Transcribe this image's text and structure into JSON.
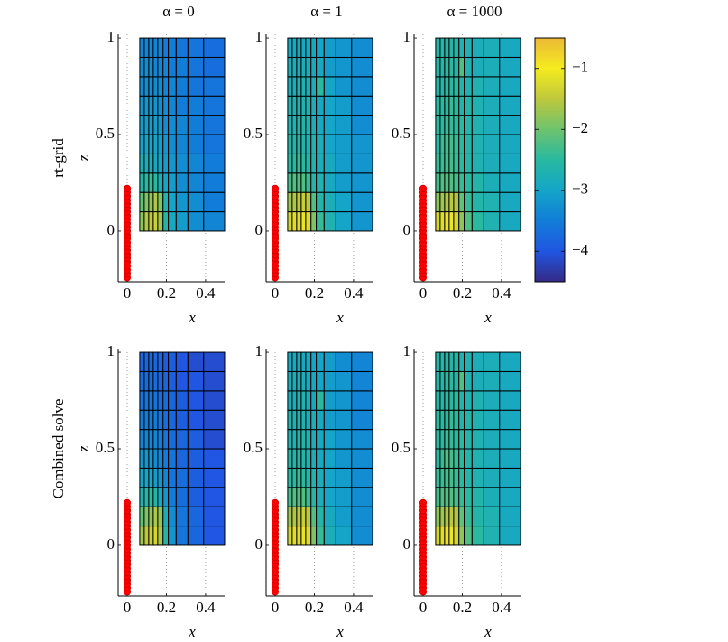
{
  "chart_data": [
    {
      "type": "heatmap",
      "title": "α = 0",
      "row_label": "rt-grid",
      "ylabel": "z",
      "xlabel": "x",
      "xlim": [
        -0.046,
        0.497
      ],
      "ylim": [
        -0.262,
        1.019
      ],
      "xticks": [
        0,
        0.2,
        0.4
      ],
      "yticks": [
        0,
        0.5,
        1
      ],
      "grid": true,
      "x_edges": [
        0.064,
        0.087,
        0.11,
        0.133,
        0.156,
        0.183,
        0.21,
        0.25,
        0.31,
        0.39,
        0.497
      ],
      "y_edges": [
        0,
        0.1,
        0.2,
        0.3,
        0.4,
        0.5,
        0.6,
        0.7,
        0.8,
        0.9,
        1
      ],
      "values": [
        [
          -1.8,
          -1.6,
          -1.5,
          -1.4,
          -1.7,
          -2.6,
          -2.9,
          -3.1,
          -3.3,
          -3.4
        ],
        [
          -2.1,
          -1.9,
          -1.8,
          -1.6,
          -1.9,
          -2.7,
          -3.0,
          -3.2,
          -3.3,
          -3.5
        ],
        [
          -2.6,
          -2.5,
          -2.4,
          -2.5,
          -2.8,
          -3.0,
          -3.1,
          -3.3,
          -3.4,
          -3.5
        ],
        [
          -2.8,
          -2.8,
          -2.8,
          -2.9,
          -3.0,
          -3.1,
          -3.2,
          -3.3,
          -3.4,
          -3.5
        ],
        [
          -3.0,
          -3.0,
          -3.0,
          -3.0,
          -3.1,
          -3.2,
          -3.3,
          -3.4,
          -3.5,
          -3.6
        ],
        [
          -3.1,
          -3.1,
          -3.1,
          -3.1,
          -3.2,
          -3.3,
          -3.3,
          -3.4,
          -3.5,
          -3.6
        ],
        [
          -3.2,
          -3.2,
          -3.2,
          -3.2,
          -3.3,
          -3.3,
          -3.4,
          -3.5,
          -3.5,
          -3.6
        ],
        [
          -3.3,
          -3.3,
          -3.3,
          -3.3,
          -3.3,
          -3.4,
          -3.4,
          -3.5,
          -3.6,
          -3.6
        ],
        [
          -3.3,
          -3.3,
          -3.3,
          -3.4,
          -3.4,
          -3.4,
          -3.5,
          -3.5,
          -3.6,
          -3.7
        ],
        [
          -3.4,
          -3.4,
          -3.4,
          -3.4,
          -3.4,
          -3.5,
          -3.5,
          -3.6,
          -3.6,
          -3.7
        ]
      ],
      "markers": {
        "color": "#ff0000",
        "x": 0,
        "z": [
          -0.24,
          -0.22,
          -0.2,
          -0.18,
          -0.16,
          -0.14,
          -0.12,
          -0.1,
          -0.08,
          -0.06,
          -0.04,
          -0.02,
          0,
          0.02,
          0.04,
          0.06,
          0.08,
          0.1,
          0.12,
          0.14,
          0.16,
          0.18,
          0.2,
          0.22
        ]
      }
    },
    {
      "type": "heatmap",
      "title": "α = 1",
      "xlabel": "x",
      "xlim": [
        -0.046,
        0.497
      ],
      "ylim": [
        -0.262,
        1.019
      ],
      "xticks": [
        0,
        0.2,
        0.4
      ],
      "yticks": [
        0,
        0.5,
        1
      ],
      "grid": true,
      "x_edges": [
        0.064,
        0.087,
        0.11,
        0.133,
        0.156,
        0.183,
        0.21,
        0.25,
        0.31,
        0.39,
        0.497
      ],
      "y_edges": [
        0,
        0.1,
        0.2,
        0.3,
        0.4,
        0.5,
        0.6,
        0.7,
        0.8,
        0.9,
        1
      ],
      "values": [
        [
          -1.3,
          -1.2,
          -1.2,
          -1.1,
          -1.2,
          -1.9,
          -2.4,
          -2.7,
          -3.0,
          -3.2
        ],
        [
          -1.7,
          -1.6,
          -1.5,
          -1.4,
          -1.5,
          -2.2,
          -2.6,
          -2.8,
          -3.0,
          -3.2
        ],
        [
          -2.3,
          -2.2,
          -2.2,
          -2.2,
          -2.4,
          -2.6,
          -2.7,
          -2.9,
          -3.1,
          -3.2
        ],
        [
          -2.5,
          -2.5,
          -2.4,
          -2.5,
          -2.6,
          -2.7,
          -2.8,
          -2.9,
          -3.1,
          -3.2
        ],
        [
          -2.6,
          -2.6,
          -2.6,
          -2.6,
          -2.7,
          -2.7,
          -2.8,
          -3.0,
          -3.1,
          -3.2
        ],
        [
          -2.7,
          -2.7,
          -2.6,
          -2.6,
          -2.7,
          -2.8,
          -2.9,
          -3.0,
          -3.1,
          -3.3
        ],
        [
          -2.7,
          -2.7,
          -2.7,
          -2.7,
          -2.7,
          -2.8,
          -2.9,
          -3.0,
          -3.1,
          -3.3
        ],
        [
          -2.8,
          -2.8,
          -2.7,
          -2.7,
          -2.8,
          -2.8,
          -2.5,
          -3.0,
          -3.2,
          -3.3
        ],
        [
          -2.8,
          -2.8,
          -2.8,
          -2.8,
          -2.8,
          -2.9,
          -2.9,
          -3.1,
          -3.2,
          -3.3
        ],
        [
          -2.9,
          -2.9,
          -2.9,
          -2.9,
          -2.9,
          -2.9,
          -3.0,
          -3.1,
          -3.2,
          -3.3
        ]
      ],
      "markers": {
        "color": "#ff0000",
        "x": 0,
        "z": [
          -0.24,
          -0.22,
          -0.2,
          -0.18,
          -0.16,
          -0.14,
          -0.12,
          -0.1,
          -0.08,
          -0.06,
          -0.04,
          -0.02,
          0,
          0.02,
          0.04,
          0.06,
          0.08,
          0.1,
          0.12,
          0.14,
          0.16,
          0.18,
          0.2,
          0.22
        ]
      }
    },
    {
      "type": "heatmap",
      "title": "α = 1000",
      "xlabel": "x",
      "xlim": [
        -0.046,
        0.497
      ],
      "ylim": [
        -0.262,
        1.019
      ],
      "xticks": [
        0,
        0.2,
        0.4
      ],
      "yticks": [
        0,
        0.5,
        1
      ],
      "grid": true,
      "x_edges": [
        0.064,
        0.087,
        0.11,
        0.133,
        0.156,
        0.183,
        0.21,
        0.25,
        0.31,
        0.39,
        0.497
      ],
      "y_edges": [
        0,
        0.1,
        0.2,
        0.3,
        0.4,
        0.5,
        0.6,
        0.7,
        0.8,
        0.9,
        1
      ],
      "values": [
        [
          -1.3,
          -1.2,
          -1.1,
          -1.1,
          -1.3,
          -1.8,
          -2.2,
          -2.5,
          -2.7,
          -2.9
        ],
        [
          -1.8,
          -1.7,
          -1.6,
          -1.5,
          -1.6,
          -2.1,
          -2.4,
          -2.6,
          -2.7,
          -2.9
        ],
        [
          -2.3,
          -2.2,
          -2.2,
          -2.2,
          -2.3,
          -2.4,
          -2.5,
          -2.6,
          -2.8,
          -2.9
        ],
        [
          -2.4,
          -2.4,
          -2.3,
          -2.3,
          -2.4,
          -2.5,
          -2.6,
          -2.7,
          -2.8,
          -2.9
        ],
        [
          -2.5,
          -2.4,
          -2.3,
          -2.3,
          -2.4,
          -2.5,
          -2.6,
          -2.7,
          -2.8,
          -2.9
        ],
        [
          -2.5,
          -2.5,
          -2.4,
          -2.4,
          -2.5,
          -2.5,
          -2.6,
          -2.7,
          -2.8,
          -2.9
        ],
        [
          -2.5,
          -2.5,
          -2.5,
          -2.4,
          -2.5,
          -2.6,
          -2.6,
          -2.7,
          -2.8,
          -2.9
        ],
        [
          -2.6,
          -2.6,
          -2.5,
          -2.5,
          -2.5,
          -2.6,
          -2.7,
          -2.7,
          -2.8,
          -2.9
        ],
        [
          -2.6,
          -2.6,
          -2.5,
          -2.5,
          -2.6,
          -2.2,
          -2.7,
          -2.8,
          -2.8,
          -2.9
        ],
        [
          -2.6,
          -2.6,
          -2.6,
          -2.6,
          -2.6,
          -2.7,
          -2.7,
          -2.8,
          -2.8,
          -2.9
        ]
      ],
      "markers": {
        "color": "#ff0000",
        "x": 0,
        "z": [
          -0.24,
          -0.22,
          -0.2,
          -0.18,
          -0.16,
          -0.14,
          -0.12,
          -0.1,
          -0.08,
          -0.06,
          -0.04,
          -0.02,
          0,
          0.02,
          0.04,
          0.06,
          0.08,
          0.1,
          0.12,
          0.14,
          0.16,
          0.18,
          0.2,
          0.22
        ]
      }
    },
    {
      "type": "heatmap",
      "row_label": "Combined solve",
      "ylabel": "z",
      "xlabel": "x",
      "xlim": [
        -0.046,
        0.497
      ],
      "ylim": [
        -0.262,
        1.019
      ],
      "xticks": [
        0,
        0.2,
        0.4
      ],
      "yticks": [
        0,
        0.5,
        1
      ],
      "grid": true,
      "x_edges": [
        0.064,
        0.087,
        0.11,
        0.133,
        0.156,
        0.183,
        0.21,
        0.25,
        0.31,
        0.39,
        0.497
      ],
      "y_edges": [
        0,
        0.1,
        0.2,
        0.3,
        0.4,
        0.5,
        0.6,
        0.7,
        0.8,
        0.9,
        1
      ],
      "values": [
        [
          -1.7,
          -1.5,
          -1.4,
          -1.3,
          -1.6,
          -2.6,
          -3.2,
          -3.6,
          -3.8,
          -4.0
        ],
        [
          -2.1,
          -1.9,
          -1.8,
          -1.6,
          -1.8,
          -2.8,
          -3.3,
          -3.6,
          -3.8,
          -4.0
        ],
        [
          -2.7,
          -2.6,
          -2.5,
          -2.6,
          -2.9,
          -3.2,
          -3.5,
          -3.7,
          -3.9,
          -4.0
        ],
        [
          -3.0,
          -3.0,
          -3.0,
          -3.1,
          -3.2,
          -3.4,
          -3.6,
          -3.7,
          -3.9,
          -4.0
        ],
        [
          -3.2,
          -3.2,
          -3.2,
          -3.3,
          -3.4,
          -3.5,
          -3.6,
          -3.8,
          -3.9,
          -4.0
        ],
        [
          -3.4,
          -3.4,
          -3.4,
          -3.4,
          -3.5,
          -3.6,
          -3.7,
          -3.8,
          -3.9,
          -4.1
        ],
        [
          -3.5,
          -3.5,
          -3.5,
          -3.5,
          -3.6,
          -3.7,
          -3.8,
          -3.9,
          -4.0,
          -4.1
        ],
        [
          -3.6,
          -3.6,
          -3.6,
          -3.6,
          -3.7,
          -3.7,
          -3.8,
          -3.9,
          -4.0,
          -4.1
        ],
        [
          -3.7,
          -3.7,
          -3.7,
          -3.7,
          -3.8,
          -3.8,
          -3.9,
          -4.0,
          -4.0,
          -4.1
        ],
        [
          -3.8,
          -3.8,
          -3.8,
          -3.8,
          -3.8,
          -3.9,
          -3.9,
          -4.0,
          -4.1,
          -4.1
        ]
      ],
      "markers": {
        "color": "#ff0000",
        "x": 0,
        "z": [
          -0.24,
          -0.22,
          -0.2,
          -0.18,
          -0.16,
          -0.14,
          -0.12,
          -0.1,
          -0.08,
          -0.06,
          -0.04,
          -0.02,
          0,
          0.02,
          0.04,
          0.06,
          0.08,
          0.1,
          0.12,
          0.14,
          0.16,
          0.18,
          0.2,
          0.22
        ]
      }
    },
    {
      "type": "heatmap",
      "xlabel": "x",
      "xlim": [
        -0.046,
        0.497
      ],
      "ylim": [
        -0.262,
        1.019
      ],
      "xticks": [
        0,
        0.2,
        0.4
      ],
      "yticks": [
        0,
        0.5,
        1
      ],
      "grid": true,
      "x_edges": [
        0.064,
        0.087,
        0.11,
        0.133,
        0.156,
        0.183,
        0.21,
        0.25,
        0.31,
        0.39,
        0.497
      ],
      "y_edges": [
        0,
        0.1,
        0.2,
        0.3,
        0.4,
        0.5,
        0.6,
        0.7,
        0.8,
        0.9,
        1
      ],
      "values": [
        [
          -1.3,
          -1.2,
          -1.2,
          -1.1,
          -1.2,
          -1.9,
          -2.4,
          -2.8,
          -3.0,
          -3.3
        ],
        [
          -1.7,
          -1.6,
          -1.5,
          -1.4,
          -1.5,
          -2.2,
          -2.6,
          -2.9,
          -3.1,
          -3.3
        ],
        [
          -2.3,
          -2.2,
          -2.2,
          -2.2,
          -2.4,
          -2.6,
          -2.8,
          -3.0,
          -3.1,
          -3.3
        ],
        [
          -2.5,
          -2.5,
          -2.4,
          -2.5,
          -2.6,
          -2.7,
          -2.8,
          -3.0,
          -3.1,
          -3.3
        ],
        [
          -2.6,
          -2.6,
          -2.6,
          -2.6,
          -2.7,
          -2.8,
          -2.9,
          -3.0,
          -3.2,
          -3.3
        ],
        [
          -2.7,
          -2.7,
          -2.6,
          -2.6,
          -2.7,
          -2.8,
          -2.9,
          -3.0,
          -3.2,
          -3.3
        ],
        [
          -2.7,
          -2.7,
          -2.7,
          -2.7,
          -2.8,
          -2.8,
          -2.9,
          -3.1,
          -3.2,
          -3.4
        ],
        [
          -2.8,
          -2.8,
          -2.7,
          -2.7,
          -2.8,
          -2.9,
          -2.5,
          -3.1,
          -3.2,
          -3.4
        ],
        [
          -2.8,
          -2.8,
          -2.8,
          -2.8,
          -2.9,
          -2.9,
          -3.0,
          -3.1,
          -3.2,
          -3.4
        ],
        [
          -2.9,
          -2.9,
          -2.9,
          -2.9,
          -2.9,
          -3.0,
          -3.0,
          -3.1,
          -3.3,
          -3.4
        ]
      ],
      "markers": {
        "color": "#ff0000",
        "x": 0,
        "z": [
          -0.24,
          -0.22,
          -0.2,
          -0.18,
          -0.16,
          -0.14,
          -0.12,
          -0.1,
          -0.08,
          -0.06,
          -0.04,
          -0.02,
          0,
          0.02,
          0.04,
          0.06,
          0.08,
          0.1,
          0.12,
          0.14,
          0.16,
          0.18,
          0.2,
          0.22
        ]
      }
    },
    {
      "type": "heatmap",
      "xlabel": "x",
      "xlim": [
        -0.046,
        0.497
      ],
      "ylim": [
        -0.262,
        1.019
      ],
      "xticks": [
        0,
        0.2,
        0.4
      ],
      "yticks": [
        0,
        0.5,
        1
      ],
      "grid": true,
      "x_edges": [
        0.064,
        0.087,
        0.11,
        0.133,
        0.156,
        0.183,
        0.21,
        0.25,
        0.31,
        0.39,
        0.497
      ],
      "y_edges": [
        0,
        0.1,
        0.2,
        0.3,
        0.4,
        0.5,
        0.6,
        0.7,
        0.8,
        0.9,
        1
      ],
      "values": [
        [
          -1.3,
          -1.2,
          -1.1,
          -1.1,
          -1.3,
          -1.8,
          -2.2,
          -2.5,
          -2.7,
          -2.9
        ],
        [
          -1.8,
          -1.7,
          -1.6,
          -1.5,
          -1.6,
          -2.1,
          -2.4,
          -2.6,
          -2.7,
          -2.9
        ],
        [
          -2.3,
          -2.2,
          -2.2,
          -2.2,
          -2.3,
          -2.4,
          -2.5,
          -2.6,
          -2.8,
          -2.9
        ],
        [
          -2.4,
          -2.4,
          -2.3,
          -2.3,
          -2.4,
          -2.5,
          -2.6,
          -2.7,
          -2.8,
          -2.9
        ],
        [
          -2.5,
          -2.4,
          -2.2,
          -2.3,
          -2.4,
          -2.5,
          -2.6,
          -2.7,
          -2.8,
          -2.9
        ],
        [
          -2.5,
          -2.5,
          -2.4,
          -2.4,
          -2.5,
          -2.5,
          -2.6,
          -2.7,
          -2.8,
          -2.9
        ],
        [
          -2.5,
          -2.5,
          -2.5,
          -2.4,
          -2.5,
          -2.6,
          -2.6,
          -2.7,
          -2.8,
          -2.9
        ],
        [
          -2.6,
          -2.6,
          -2.5,
          -2.5,
          -2.5,
          -2.6,
          -2.7,
          -2.7,
          -2.8,
          -2.9
        ],
        [
          -2.6,
          -2.6,
          -2.5,
          -2.5,
          -2.6,
          -2.2,
          -2.7,
          -2.8,
          -2.8,
          -2.9
        ],
        [
          -2.6,
          -2.6,
          -2.6,
          -2.6,
          -2.6,
          -2.7,
          -2.7,
          -2.8,
          -2.8,
          -2.9
        ]
      ],
      "markers": {
        "color": "#ff0000",
        "x": 0,
        "z": [
          -0.24,
          -0.22,
          -0.2,
          -0.18,
          -0.16,
          -0.14,
          -0.12,
          -0.1,
          -0.08,
          -0.06,
          -0.04,
          -0.02,
          0,
          0.02,
          0.04,
          0.06,
          0.08,
          0.1,
          0.12,
          0.14,
          0.16,
          0.18,
          0.2,
          0.22
        ]
      }
    }
  ],
  "colorbar": {
    "lim": [
      -4.5,
      -0.5
    ],
    "ticks": [
      {
        "value": -1,
        "label": "−1"
      },
      {
        "value": -2,
        "label": "−2"
      },
      {
        "value": -3,
        "label": "−3"
      },
      {
        "value": -4,
        "label": "−4"
      }
    ]
  }
}
